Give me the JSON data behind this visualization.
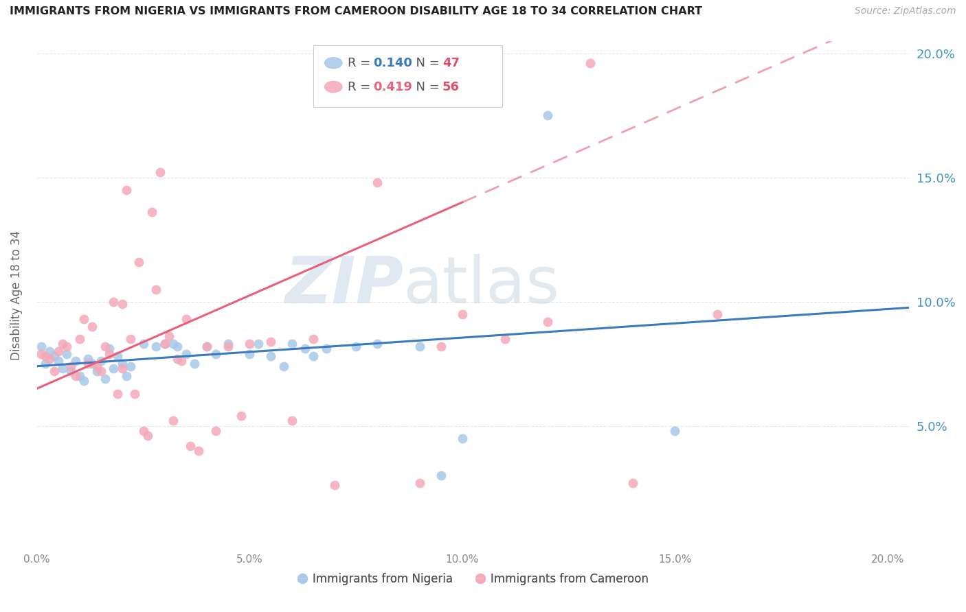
{
  "title": "IMMIGRANTS FROM NIGERIA VS IMMIGRANTS FROM CAMEROON DISABILITY AGE 18 TO 34 CORRELATION CHART",
  "source": "Source: ZipAtlas.com",
  "ylabel": "Disability Age 18 to 34",
  "xlim": [
    0.0,
    0.205
  ],
  "ylim": [
    0.0,
    0.205
  ],
  "nigeria_color": "#a8c8e8",
  "cameroon_color": "#f4a8b8",
  "nigeria_R": 0.14,
  "nigeria_N": 47,
  "cameroon_R": 0.419,
  "cameroon_N": 56,
  "nigeria_line_color": "#3a7abf",
  "cameroon_line_color": "#e8607a",
  "legend_label_nigeria": "Immigrants from Nigeria",
  "legend_label_cameroon": "Immigrants from Cameroon",
  "nigeria_legend_R_color": "#3a7abf",
  "nigeria_legend_N_color": "#e8607a",
  "cameroon_legend_R_color": "#e8607a",
  "cameroon_legend_N_color": "#e8607a",
  "nigeria_points": [
    [
      0.001,
      0.082
    ],
    [
      0.002,
      0.075
    ],
    [
      0.003,
      0.08
    ],
    [
      0.004,
      0.078
    ],
    [
      0.005,
      0.076
    ],
    [
      0.006,
      0.073
    ],
    [
      0.007,
      0.079
    ],
    [
      0.008,
      0.072
    ],
    [
      0.009,
      0.076
    ],
    [
      0.01,
      0.07
    ],
    [
      0.011,
      0.068
    ],
    [
      0.012,
      0.077
    ],
    [
      0.013,
      0.075
    ],
    [
      0.014,
      0.072
    ],
    [
      0.015,
      0.076
    ],
    [
      0.016,
      0.069
    ],
    [
      0.017,
      0.081
    ],
    [
      0.018,
      0.073
    ],
    [
      0.019,
      0.078
    ],
    [
      0.02,
      0.075
    ],
    [
      0.021,
      0.07
    ],
    [
      0.022,
      0.074
    ],
    [
      0.025,
      0.083
    ],
    [
      0.028,
      0.082
    ],
    [
      0.03,
      0.083
    ],
    [
      0.032,
      0.083
    ],
    [
      0.033,
      0.082
    ],
    [
      0.035,
      0.079
    ],
    [
      0.037,
      0.075
    ],
    [
      0.04,
      0.082
    ],
    [
      0.042,
      0.079
    ],
    [
      0.045,
      0.083
    ],
    [
      0.05,
      0.079
    ],
    [
      0.052,
      0.083
    ],
    [
      0.055,
      0.078
    ],
    [
      0.058,
      0.074
    ],
    [
      0.06,
      0.083
    ],
    [
      0.063,
      0.081
    ],
    [
      0.065,
      0.078
    ],
    [
      0.068,
      0.081
    ],
    [
      0.075,
      0.082
    ],
    [
      0.08,
      0.083
    ],
    [
      0.09,
      0.082
    ],
    [
      0.095,
      0.03
    ],
    [
      0.1,
      0.045
    ],
    [
      0.12,
      0.175
    ],
    [
      0.15,
      0.048
    ]
  ],
  "cameroon_points": [
    [
      0.001,
      0.079
    ],
    [
      0.002,
      0.078
    ],
    [
      0.003,
      0.077
    ],
    [
      0.004,
      0.072
    ],
    [
      0.005,
      0.08
    ],
    [
      0.006,
      0.083
    ],
    [
      0.007,
      0.082
    ],
    [
      0.008,
      0.074
    ],
    [
      0.009,
      0.07
    ],
    [
      0.01,
      0.085
    ],
    [
      0.011,
      0.093
    ],
    [
      0.012,
      0.075
    ],
    [
      0.013,
      0.09
    ],
    [
      0.014,
      0.074
    ],
    [
      0.015,
      0.072
    ],
    [
      0.016,
      0.082
    ],
    [
      0.017,
      0.079
    ],
    [
      0.018,
      0.1
    ],
    [
      0.019,
      0.063
    ],
    [
      0.02,
      0.073
    ],
    [
      0.02,
      0.099
    ],
    [
      0.021,
      0.145
    ],
    [
      0.022,
      0.085
    ],
    [
      0.023,
      0.063
    ],
    [
      0.024,
      0.116
    ],
    [
      0.025,
      0.048
    ],
    [
      0.026,
      0.046
    ],
    [
      0.027,
      0.136
    ],
    [
      0.028,
      0.105
    ],
    [
      0.029,
      0.152
    ],
    [
      0.03,
      0.083
    ],
    [
      0.031,
      0.086
    ],
    [
      0.032,
      0.052
    ],
    [
      0.033,
      0.077
    ],
    [
      0.034,
      0.076
    ],
    [
      0.035,
      0.093
    ],
    [
      0.036,
      0.042
    ],
    [
      0.038,
      0.04
    ],
    [
      0.04,
      0.082
    ],
    [
      0.042,
      0.048
    ],
    [
      0.045,
      0.082
    ],
    [
      0.048,
      0.054
    ],
    [
      0.05,
      0.083
    ],
    [
      0.055,
      0.084
    ],
    [
      0.06,
      0.052
    ],
    [
      0.065,
      0.085
    ],
    [
      0.07,
      0.026
    ],
    [
      0.08,
      0.148
    ],
    [
      0.09,
      0.027
    ],
    [
      0.095,
      0.082
    ],
    [
      0.1,
      0.095
    ],
    [
      0.11,
      0.085
    ],
    [
      0.12,
      0.092
    ],
    [
      0.13,
      0.196
    ],
    [
      0.14,
      0.027
    ],
    [
      0.16,
      0.095
    ]
  ],
  "watermark_zip": "ZIP",
  "watermark_atlas": "atlas",
  "background_color": "#ffffff",
  "grid_color": "#e5e5e5"
}
